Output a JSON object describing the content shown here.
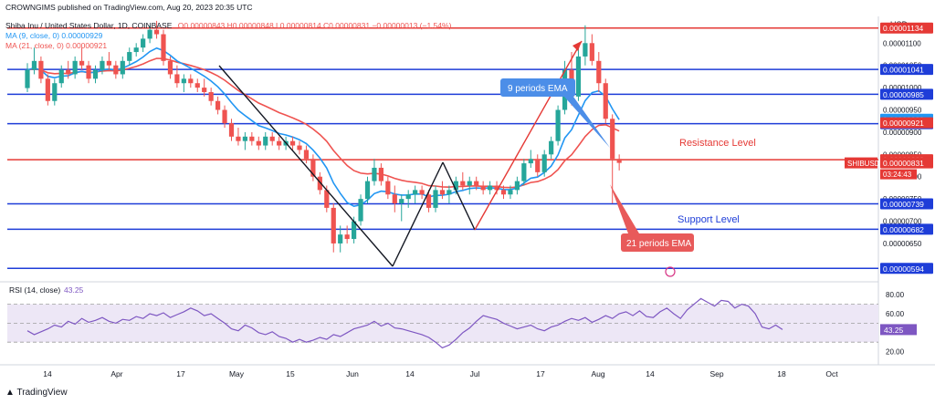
{
  "header": {
    "publisher": "CROWNGIMS published on TradingView.com, Aug 20, 2023 20:35 UTC",
    "symbol": "Shiba Inu / United States Dollar, 1D, COINBASE",
    "ohlc": "O0.00000843 H0.00000848 L0.00000814 C0.00000831 −0.00000013 (−1.54%)",
    "ema9": "MA (9, close, 0)  0.00000929",
    "ema21": "MA (21, close, 0)  0.00000921"
  },
  "footer": {
    "brand": "TradingView"
  },
  "colors": {
    "candle_up": "#26a69a",
    "candle_down": "#ef5350",
    "ema9": "#2196f3",
    "ema21": "#ef5350",
    "level_blue": "#1e3dd8",
    "level_red": "#e53935",
    "rsi": "#7e57c2",
    "rsi_band": "#ede7f6"
  },
  "chart_data": {
    "type": "candlestick",
    "currency": "USD",
    "y_ticks": [
      "0.00001100",
      "0.00001050",
      "0.00001000",
      "0.00000950",
      "0.00000900",
      "0.00000850",
      "0.00000800",
      "0.00000750",
      "0.00000700",
      "0.00000650",
      "0.00000600"
    ],
    "x_ticks": [
      "14",
      "Apr",
      "17",
      "May",
      "15",
      "Jun",
      "14",
      "Jul",
      "17",
      "Aug",
      "14",
      "Sep",
      "18",
      "Oct"
    ],
    "levels": [
      {
        "value": "0.00001134",
        "color": "red"
      },
      {
        "value": "0.00001041",
        "color": "blue"
      },
      {
        "value": "0.00000985",
        "color": "blue"
      },
      {
        "value": "0.00000919",
        "color": "blue"
      },
      {
        "value": "0.00000838",
        "color": "red"
      },
      {
        "value": "0.00000739",
        "color": "blue"
      },
      {
        "value": "0.00000682",
        "color": "blue"
      },
      {
        "value": "0.00000594",
        "color": "blue"
      }
    ],
    "axis_badges": [
      {
        "label": "0.00000929",
        "color": "blue"
      },
      {
        "label": "0.00000921",
        "color": "red"
      },
      {
        "label": "0.00000831",
        "color": "red"
      }
    ],
    "symbol_badge": "SHIBUSD",
    "countdown": "03:24:43",
    "annotations": {
      "ema9_label": "9 periods EMA",
      "ema21_label": "21 periods EMA",
      "resistance_label": "Resistance Level",
      "support_label": "Support Level"
    },
    "rsi": {
      "label": "RSI (14, close)",
      "value": "43.25",
      "ticks": [
        "80.00",
        "60.00",
        "20.00"
      ],
      "upper": 70,
      "lower": 30,
      "series": [
        42,
        38,
        41,
        44,
        48,
        46,
        52,
        49,
        55,
        51,
        53,
        56,
        52,
        50,
        54,
        53,
        57,
        55,
        60,
        58,
        61,
        56,
        59,
        62,
        66,
        63,
        58,
        60,
        55,
        50,
        44,
        42,
        48,
        45,
        40,
        38,
        41,
        36,
        34,
        30,
        33,
        30,
        32,
        35,
        33,
        38,
        36,
        40,
        44,
        46,
        48,
        52,
        47,
        50,
        45,
        44,
        42,
        40,
        38,
        35,
        30,
        24,
        27,
        33,
        40,
        45,
        52,
        58,
        56,
        54,
        50,
        47,
        44,
        46,
        48,
        44,
        42,
        46,
        48,
        52,
        55,
        53,
        56,
        51,
        54,
        58,
        55,
        60,
        62,
        58,
        63,
        57,
        56,
        62,
        66,
        60,
        55,
        64,
        70,
        76,
        72,
        68,
        74,
        73,
        66,
        70,
        68,
        60,
        46,
        44,
        48,
        43.25
      ]
    },
    "candles": [
      [
        9.99,
        10.55,
        9.9,
        10.4
      ],
      [
        10.4,
        10.9,
        10.3,
        10.6
      ],
      [
        10.6,
        10.7,
        10.1,
        10.2
      ],
      [
        10.2,
        10.3,
        9.6,
        9.7
      ],
      [
        9.7,
        10.2,
        9.6,
        10.1
      ],
      [
        10.1,
        10.5,
        10.0,
        10.4
      ],
      [
        10.4,
        10.6,
        10.2,
        10.3
      ],
      [
        10.3,
        10.7,
        10.2,
        10.6
      ],
      [
        10.6,
        10.9,
        10.4,
        10.5
      ],
      [
        10.5,
        10.6,
        10.1,
        10.2
      ],
      [
        10.2,
        10.5,
        10.1,
        10.4
      ],
      [
        10.4,
        10.7,
        10.3,
        10.6
      ],
      [
        10.6,
        10.8,
        10.4,
        10.5
      ],
      [
        10.5,
        10.6,
        10.2,
        10.3
      ],
      [
        10.3,
        10.7,
        10.2,
        10.6
      ],
      [
        10.6,
        10.9,
        10.5,
        10.8
      ],
      [
        10.8,
        11.0,
        10.7,
        10.9
      ],
      [
        10.9,
        11.2,
        10.8,
        11.1
      ],
      [
        11.1,
        11.4,
        11.0,
        11.3
      ],
      [
        11.3,
        11.5,
        11.1,
        11.2
      ],
      [
        11.2,
        11.3,
        10.5,
        10.6
      ],
      [
        10.6,
        10.7,
        10.2,
        10.3
      ],
      [
        10.3,
        10.5,
        10.0,
        10.1
      ],
      [
        10.1,
        10.3,
        9.9,
        10.2
      ],
      [
        10.2,
        10.3,
        10.0,
        10.1
      ],
      [
        10.1,
        10.2,
        9.9,
        10.0
      ],
      [
        10.0,
        10.2,
        9.8,
        9.9
      ],
      [
        9.9,
        10.0,
        9.6,
        9.7
      ],
      [
        9.7,
        9.8,
        9.4,
        9.5
      ],
      [
        9.5,
        9.6,
        9.1,
        9.2
      ],
      [
        9.2,
        9.3,
        8.8,
        8.9
      ],
      [
        8.9,
        9.1,
        8.7,
        8.8
      ],
      [
        8.8,
        9.0,
        8.6,
        8.9
      ],
      [
        8.9,
        9.0,
        8.7,
        8.8
      ],
      [
        8.8,
        8.9,
        8.6,
        8.7
      ],
      [
        8.7,
        9.0,
        8.6,
        8.9
      ],
      [
        8.9,
        9.0,
        8.7,
        8.8
      ],
      [
        8.8,
        8.9,
        8.6,
        8.7
      ],
      [
        8.7,
        8.9,
        8.6,
        8.8
      ],
      [
        8.8,
        8.9,
        8.6,
        8.7
      ],
      [
        8.7,
        8.8,
        8.5,
        8.6
      ],
      [
        8.6,
        8.7,
        8.3,
        8.4
      ],
      [
        8.4,
        8.5,
        7.9,
        8.0
      ],
      [
        8.0,
        8.1,
        7.6,
        7.7
      ],
      [
        7.7,
        7.8,
        7.2,
        7.3
      ],
      [
        7.3,
        7.4,
        6.3,
        6.5
      ],
      [
        6.5,
        6.9,
        6.3,
        6.7
      ],
      [
        6.7,
        6.9,
        6.5,
        6.6
      ],
      [
        6.6,
        7.1,
        6.5,
        7.0
      ],
      [
        7.0,
        7.6,
        6.9,
        7.5
      ],
      [
        7.5,
        8.0,
        7.4,
        7.9
      ],
      [
        7.9,
        8.4,
        7.8,
        8.2
      ],
      [
        8.2,
        8.3,
        7.8,
        7.9
      ],
      [
        7.9,
        8.0,
        7.5,
        7.6
      ],
      [
        7.6,
        7.8,
        7.2,
        7.4
      ],
      [
        7.4,
        7.6,
        7.0,
        7.5
      ],
      [
        7.5,
        7.7,
        7.3,
        7.6
      ],
      [
        7.6,
        7.8,
        7.4,
        7.7
      ],
      [
        7.7,
        7.8,
        7.5,
        7.6
      ],
      [
        7.6,
        7.7,
        7.2,
        7.3
      ],
      [
        7.3,
        7.8,
        7.2,
        7.7
      ],
      [
        7.7,
        7.9,
        7.5,
        7.6
      ],
      [
        7.6,
        7.8,
        7.4,
        7.7
      ],
      [
        7.7,
        8.0,
        7.6,
        7.9
      ],
      [
        7.9,
        8.1,
        7.7,
        7.8
      ],
      [
        7.8,
        8.0,
        7.6,
        7.9
      ],
      [
        7.9,
        8.0,
        7.7,
        7.8
      ],
      [
        7.8,
        7.9,
        7.6,
        7.7
      ],
      [
        7.7,
        7.9,
        7.6,
        7.8
      ],
      [
        7.8,
        7.9,
        7.6,
        7.7
      ],
      [
        7.7,
        7.8,
        7.5,
        7.6
      ],
      [
        7.6,
        7.8,
        7.5,
        7.7
      ],
      [
        7.7,
        8.0,
        7.6,
        7.9
      ],
      [
        7.9,
        8.4,
        7.8,
        8.3
      ],
      [
        8.3,
        8.6,
        8.2,
        8.4
      ],
      [
        8.4,
        8.5,
        8.0,
        8.1
      ],
      [
        8.1,
        8.6,
        8.0,
        8.5
      ],
      [
        8.5,
        8.9,
        8.4,
        8.8
      ],
      [
        8.8,
        9.6,
        8.7,
        9.5
      ],
      [
        9.5,
        10.6,
        9.4,
        10.4
      ],
      [
        10.4,
        10.8,
        9.6,
        9.8
      ],
      [
        9.8,
        10.9,
        9.7,
        10.7
      ],
      [
        10.7,
        11.4,
        10.5,
        11.0
      ],
      [
        11.0,
        11.2,
        10.5,
        10.6
      ],
      [
        10.6,
        10.8,
        9.9,
        10.1
      ],
      [
        10.1,
        10.2,
        9.2,
        9.3
      ],
      [
        9.3,
        9.4,
        7.4,
        8.4
      ],
      [
        8.4,
        8.5,
        8.14,
        8.31
      ]
    ]
  }
}
